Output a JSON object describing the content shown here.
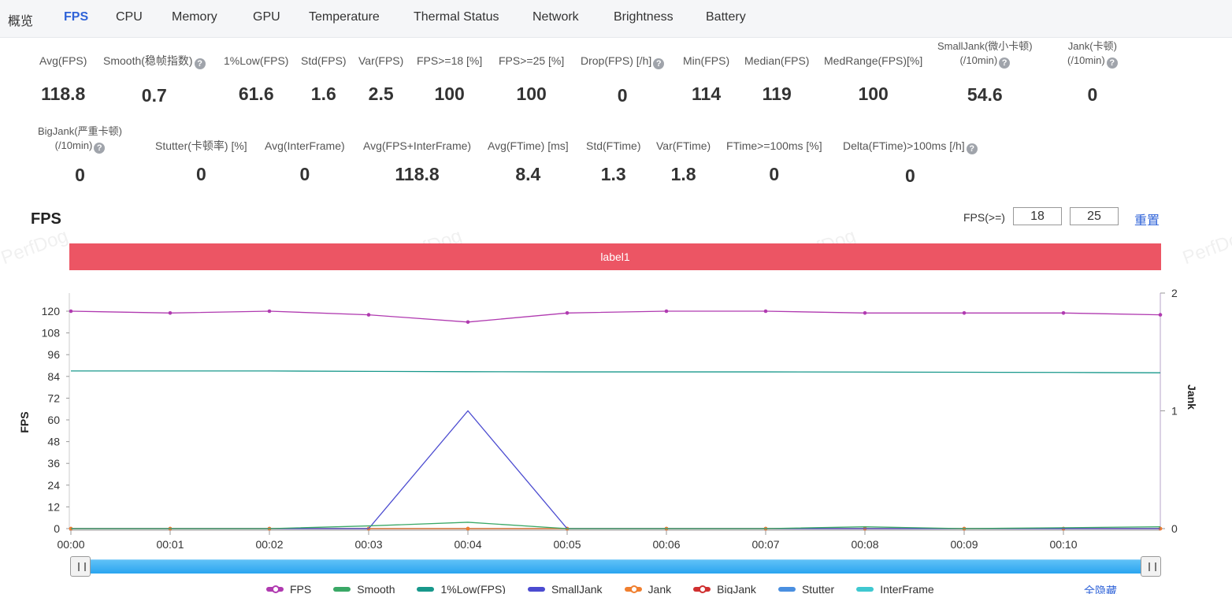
{
  "tabs": [
    "概览",
    "FPS",
    "CPU",
    "Memory",
    "GPU",
    "Temperature",
    "Thermal Status",
    "Network",
    "Brightness",
    "Battery"
  ],
  "active_tab": "FPS",
  "metrics_row1": [
    {
      "label": "Avg(FPS)",
      "value": "118.8"
    },
    {
      "label": "Smooth(稳帧指数)",
      "value": "0.7",
      "help": true
    },
    {
      "label": "1%Low(FPS)",
      "value": "61.6"
    },
    {
      "label": "Std(FPS)",
      "value": "1.6"
    },
    {
      "label": "Var(FPS)",
      "value": "2.5"
    },
    {
      "label": "FPS>=18 [%]",
      "value": "100"
    },
    {
      "label": "FPS>=25 [%]",
      "value": "100"
    },
    {
      "label": "Drop(FPS) [/h]",
      "value": "0",
      "help": true
    },
    {
      "label": "Min(FPS)",
      "value": "114"
    },
    {
      "label": "Median(FPS)",
      "value": "119"
    },
    {
      "label": "MedRange(FPS)[%]",
      "value": "100"
    },
    {
      "label": "SmallJank(微小卡顿)",
      "label2": "(/10min)",
      "value": "54.6",
      "help": true
    },
    {
      "label": "Jank(卡顿)",
      "label2": "(/10min)",
      "value": "0",
      "help": true
    }
  ],
  "metrics_row2": [
    {
      "label": "BigJank(严重卡顿)",
      "label2": "(/10min)",
      "value": "0",
      "help": true
    },
    {
      "label": "Stutter(卡顿率) [%]",
      "value": "0"
    },
    {
      "label": "Avg(InterFrame)",
      "value": "0"
    },
    {
      "label": "Avg(FPS+InterFrame)",
      "value": "118.8"
    },
    {
      "label": "Avg(FTime) [ms]",
      "value": "8.4"
    },
    {
      "label": "Std(FTime)",
      "value": "1.3"
    },
    {
      "label": "Var(FTime)",
      "value": "1.8"
    },
    {
      "label": "FTime>=100ms [%]",
      "value": "0"
    },
    {
      "label": "Delta(FTime)>100ms [/h]",
      "value": "0",
      "help": true
    }
  ],
  "help_glyph": "?",
  "chart_section": {
    "title": "FPS",
    "threshold_label": "FPS(>=)",
    "threshold_1": "18",
    "threshold_2": "25",
    "reset_label": "重置",
    "label_bar": "label1",
    "watermark": "PerfDog",
    "hide_all_label": "全隐藏"
  },
  "chart_data": {
    "type": "line",
    "x": [
      "00:00",
      "00:01",
      "00:02",
      "00:03",
      "00:04",
      "00:05",
      "00:06",
      "00:07",
      "00:08",
      "00:09",
      "00:10",
      "00:11"
    ],
    "x_tick_labels": [
      "00:00",
      "00:01",
      "00:02",
      "00:03",
      "00:04",
      "00:05",
      "00:06",
      "00:07",
      "00:08",
      "00:09",
      "00:10"
    ],
    "ylabel": "FPS",
    "y2label": "Jank",
    "ylim": [
      0,
      130
    ],
    "y_ticks": [
      0,
      12,
      24,
      36,
      48,
      60,
      72,
      84,
      96,
      108,
      120
    ],
    "y2lim": [
      0,
      2
    ],
    "y2_ticks": [
      0,
      1,
      2
    ],
    "series": [
      {
        "name": "FPS",
        "axis": "left",
        "color": "#b03ab0",
        "markers": true,
        "values": [
          120,
          119,
          120,
          118,
          114,
          119,
          120,
          120,
          119,
          119,
          119,
          118
        ]
      },
      {
        "name": "Smooth",
        "axis": "left",
        "color": "#3aa866",
        "markers": false,
        "values": [
          0,
          0,
          0,
          1.5,
          3.5,
          0,
          0,
          0,
          1,
          0,
          0.5,
          1
        ]
      },
      {
        "name": "1%Low(FPS)",
        "axis": "left",
        "color": "#18988b",
        "markers": false,
        "values": [
          87,
          87,
          87,
          86.8,
          86.6,
          86.5,
          86.5,
          86.5,
          86.4,
          86.3,
          86.2,
          86
        ]
      },
      {
        "name": "SmallJank",
        "axis": "right",
        "color": "#4b4bd0",
        "markers": false,
        "values": [
          0,
          0,
          0,
          0,
          1,
          0,
          0,
          0,
          0,
          0,
          0,
          0
        ]
      },
      {
        "name": "Jank",
        "axis": "right",
        "color": "#f07f2f",
        "markers": true,
        "values": [
          0,
          0,
          0,
          0,
          0,
          0,
          0,
          0,
          0,
          0,
          0,
          0
        ]
      },
      {
        "name": "BigJank",
        "axis": "right",
        "color": "#d03030",
        "markers": true,
        "values": [
          0,
          0,
          0,
          0,
          0,
          0,
          0,
          0,
          0,
          0,
          0,
          0
        ]
      },
      {
        "name": "Stutter",
        "axis": "left",
        "color": "#4a8fe0",
        "markers": false,
        "values": [
          0,
          0,
          0,
          0,
          0,
          0,
          0,
          0,
          0,
          0,
          0,
          0
        ]
      },
      {
        "name": "InterFrame",
        "axis": "left",
        "color": "#3fc8d0",
        "markers": false,
        "values": [
          0,
          0,
          0,
          0,
          0,
          0,
          0,
          0,
          0,
          0,
          0,
          0
        ]
      }
    ],
    "legend_position": "bottom"
  }
}
